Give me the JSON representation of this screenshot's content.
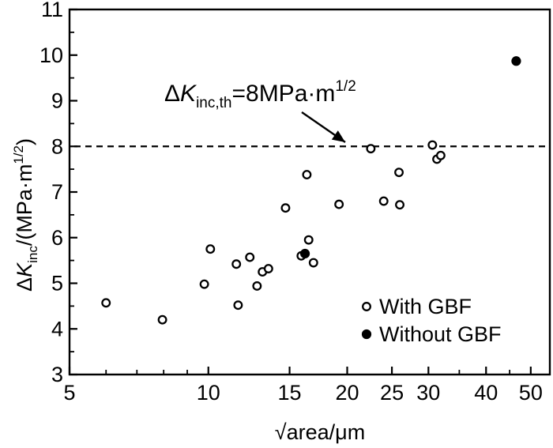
{
  "chart_data": {
    "type": "scatter",
    "xlabel": "√area/μm",
    "ylabel": "ΔK_inc/(MPa·m^1/2)",
    "xlim": [
      5,
      55
    ],
    "ylim": [
      3,
      11
    ],
    "x_scale": "log",
    "grid": false,
    "legend_position": "bottom-right",
    "x_ticks": [
      5,
      10,
      15,
      20,
      25,
      30,
      40,
      50
    ],
    "x_tick_labels": [
      "5",
      "10",
      "15",
      "20",
      "25",
      "30",
      "40",
      "50"
    ],
    "y_ticks": [
      3,
      4,
      5,
      6,
      7,
      8,
      9,
      10,
      11
    ],
    "y_tick_labels": [
      "3",
      "4",
      "5",
      "6",
      "7",
      "8",
      "9",
      "10",
      "11"
    ],
    "threshold": {
      "y": 8,
      "label": "ΔK_inc,th=8MPa·m^1/2"
    },
    "series": [
      {
        "name": "With GBF",
        "marker": "open-circle",
        "points": [
          {
            "x": 6.0,
            "y": 4.57
          },
          {
            "x": 7.95,
            "y": 4.2
          },
          {
            "x": 9.8,
            "y": 4.98
          },
          {
            "x": 10.1,
            "y": 5.75
          },
          {
            "x": 11.5,
            "y": 5.42
          },
          {
            "x": 11.6,
            "y": 4.52
          },
          {
            "x": 12.3,
            "y": 5.57
          },
          {
            "x": 12.75,
            "y": 4.94
          },
          {
            "x": 13.1,
            "y": 5.25
          },
          {
            "x": 13.5,
            "y": 5.32
          },
          {
            "x": 14.7,
            "y": 6.65
          },
          {
            "x": 15.9,
            "y": 5.6
          },
          {
            "x": 16.35,
            "y": 7.38
          },
          {
            "x": 16.5,
            "y": 5.95
          },
          {
            "x": 16.9,
            "y": 5.45
          },
          {
            "x": 19.2,
            "y": 6.73
          },
          {
            "x": 22.5,
            "y": 7.95
          },
          {
            "x": 24.0,
            "y": 6.8
          },
          {
            "x": 25.9,
            "y": 7.43
          },
          {
            "x": 26.0,
            "y": 6.72
          },
          {
            "x": 30.6,
            "y": 8.03
          },
          {
            "x": 31.3,
            "y": 7.72
          },
          {
            "x": 31.9,
            "y": 7.8
          }
        ]
      },
      {
        "name": "Without GBF",
        "marker": "filled-circle",
        "points": [
          {
            "x": 16.2,
            "y": 5.65
          },
          {
            "x": 46.5,
            "y": 9.87
          }
        ]
      }
    ]
  }
}
